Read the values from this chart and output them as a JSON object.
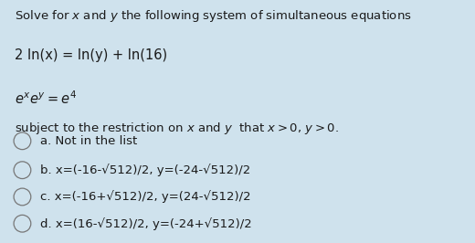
{
  "background_color": "#cfe2ed",
  "title_text": "Solve for $x$ and $y$ the following system of simultaneous equations",
  "eq1_plain": "2 ln(x) = ln(y) + ln(16)",
  "eq2_math": "$e^xe^y = e^4$",
  "eq3": "subject to the restriction on $x$ and $y$  that $x > 0$, $y > 0$.",
  "options": [
    {
      "label": "a.",
      "text": " Not in the list"
    },
    {
      "label": "b.",
      "text": " x=(-16-√512)/2, y=(-24-√512)/2"
    },
    {
      "label": "c.",
      "text": " x=(-16+√512)/2, y=(24-√512)/2"
    },
    {
      "label": "d.",
      "text": " x=(16-√512)/2, y=(-24+√512)/2"
    }
  ],
  "font_size_title": 9.5,
  "font_size_eq": 10.5,
  "font_size_option": 9.5,
  "text_color": "#1a1a1a",
  "circle_color": "#777777"
}
